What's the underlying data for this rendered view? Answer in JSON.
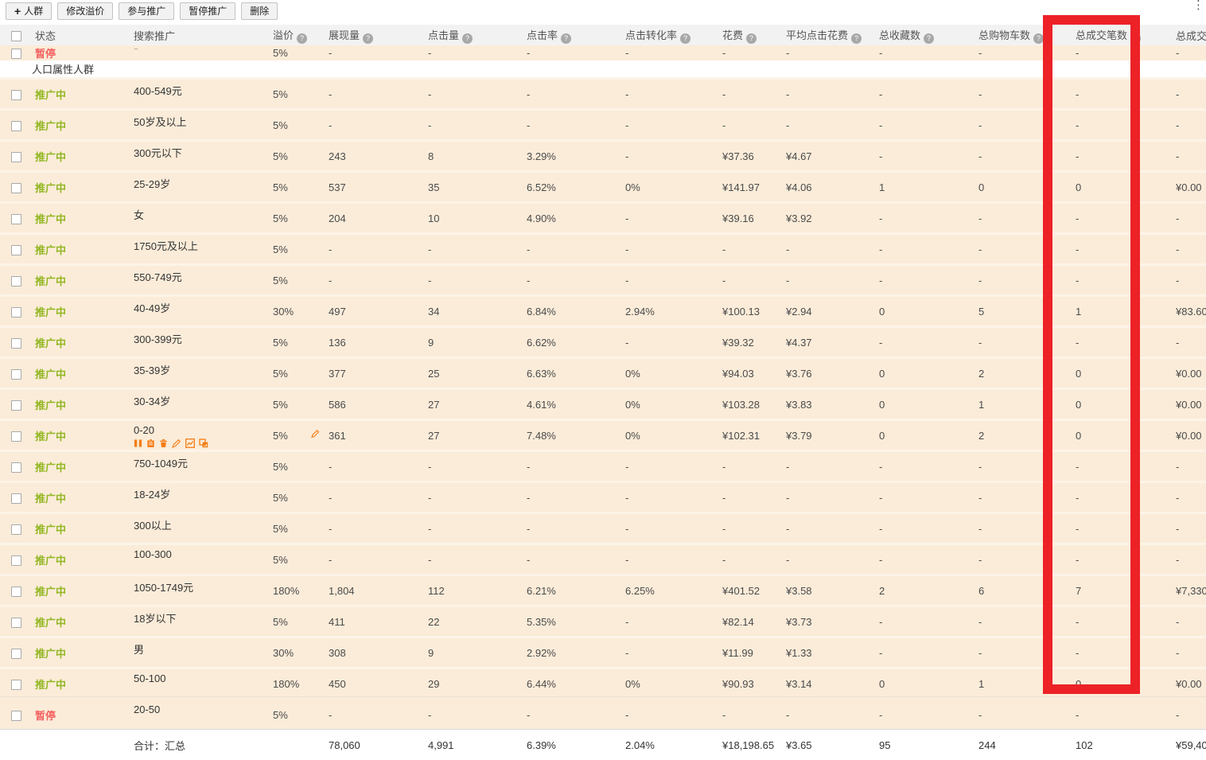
{
  "toolbar": {
    "buttons": [
      {
        "name": "add-audience-button",
        "label": "人群",
        "icon": "plus-icon"
      },
      {
        "name": "modify-premium-button",
        "label": "修改溢价"
      },
      {
        "name": "join-promotion-button",
        "label": "参与推广"
      },
      {
        "name": "pause-promotion-button",
        "label": "暂停推广"
      },
      {
        "name": "delete-button",
        "label": "删除"
      }
    ],
    "overflow_icon": "⋮"
  },
  "annotation": {
    "shape": "rectangle",
    "color": "#ec2227",
    "highlights_column": "总成交笔数"
  },
  "colors": {
    "row_background": "#fbecd9",
    "status_active": "#93b723",
    "status_paused": "#f4605f",
    "action_icon_orange": "#f57d14",
    "header_background": "#f2f2f2"
  },
  "table": {
    "columns": [
      {
        "key": "status",
        "label": "状态",
        "info": false,
        "name": "column-status"
      },
      {
        "key": "name",
        "label": "搜索推广",
        "info": false,
        "name": "column-search-promotion"
      },
      {
        "key": "premium",
        "label": "溢价",
        "info": true,
        "name": "column-premium"
      },
      {
        "key": "impressions",
        "label": "展现量",
        "info": true,
        "name": "column-impressions"
      },
      {
        "key": "clicks",
        "label": "点击量",
        "info": true,
        "name": "column-clicks"
      },
      {
        "key": "ctr",
        "label": "点击率",
        "info": true,
        "name": "column-ctr"
      },
      {
        "key": "cvr",
        "label": "点击转化率",
        "info": true,
        "name": "column-conversion-rate"
      },
      {
        "key": "cost",
        "label": "花费",
        "info": true,
        "name": "column-cost"
      },
      {
        "key": "avg_cost",
        "label": "平均点击花费",
        "info": true,
        "name": "column-avg-click-cost"
      },
      {
        "key": "favorites",
        "label": "总收藏数",
        "info": true,
        "name": "column-total-favorites"
      },
      {
        "key": "carts",
        "label": "总购物车数",
        "info": true,
        "name": "column-total-carts"
      },
      {
        "key": "deals",
        "label": "总成交笔数",
        "info": true,
        "name": "column-total-deals"
      },
      {
        "key": "amount",
        "label": "总成交金额",
        "info": false,
        "name": "column-total-amount"
      }
    ],
    "partial_row": {
      "status": "暂停",
      "state": "paused",
      "name_fragment": "~",
      "premium": "5%",
      "impressions": "-",
      "clicks": "-",
      "ctr": "-",
      "cvr": "-",
      "cost": "-",
      "avg_cost": "-",
      "favorites": "-",
      "carts": "-",
      "deals": "-",
      "amount": "-"
    },
    "section_label": "人口属性人群",
    "rows": [
      {
        "status": "推广中",
        "state": "active",
        "name": "400-549元",
        "premium": "5%",
        "impressions": "-",
        "clicks": "-",
        "ctr": "-",
        "cvr": "-",
        "cost": "-",
        "avg_cost": "-",
        "favorites": "-",
        "carts": "-",
        "deals": "-",
        "amount": "-"
      },
      {
        "status": "推广中",
        "state": "active",
        "name": "50岁及以上",
        "premium": "5%",
        "impressions": "-",
        "clicks": "-",
        "ctr": "-",
        "cvr": "-",
        "cost": "-",
        "avg_cost": "-",
        "favorites": "-",
        "carts": "-",
        "deals": "-",
        "amount": "-"
      },
      {
        "status": "推广中",
        "state": "active",
        "name": "300元以下",
        "premium": "5%",
        "impressions": "243",
        "clicks": "8",
        "ctr": "3.29%",
        "cvr": "-",
        "cost": "¥37.36",
        "avg_cost": "¥4.67",
        "favorites": "-",
        "carts": "-",
        "deals": "-",
        "amount": "-"
      },
      {
        "status": "推广中",
        "state": "active",
        "name": "25-29岁",
        "premium": "5%",
        "impressions": "537",
        "clicks": "35",
        "ctr": "6.52%",
        "cvr": "0%",
        "cost": "¥141.97",
        "avg_cost": "¥4.06",
        "favorites": "1",
        "carts": "0",
        "deals": "0",
        "amount": "¥0.00"
      },
      {
        "status": "推广中",
        "state": "active",
        "name": "女",
        "premium": "5%",
        "impressions": "204",
        "clicks": "10",
        "ctr": "4.90%",
        "cvr": "-",
        "cost": "¥39.16",
        "avg_cost": "¥3.92",
        "favorites": "-",
        "carts": "-",
        "deals": "-",
        "amount": "-"
      },
      {
        "status": "推广中",
        "state": "active",
        "name": "1750元及以上",
        "premium": "5%",
        "impressions": "-",
        "clicks": "-",
        "ctr": "-",
        "cvr": "-",
        "cost": "-",
        "avg_cost": "-",
        "favorites": "-",
        "carts": "-",
        "deals": "-",
        "amount": "-"
      },
      {
        "status": "推广中",
        "state": "active",
        "name": "550-749元",
        "premium": "5%",
        "impressions": "-",
        "clicks": "-",
        "ctr": "-",
        "cvr": "-",
        "cost": "-",
        "avg_cost": "-",
        "favorites": "-",
        "carts": "-",
        "deals": "-",
        "amount": "-"
      },
      {
        "status": "推广中",
        "state": "active",
        "name": "40-49岁",
        "premium": "30%",
        "impressions": "497",
        "clicks": "34",
        "ctr": "6.84%",
        "cvr": "2.94%",
        "cost": "¥100.13",
        "avg_cost": "¥2.94",
        "favorites": "0",
        "carts": "5",
        "deals": "1",
        "amount": "¥83.60"
      },
      {
        "status": "推广中",
        "state": "active",
        "name": "300-399元",
        "premium": "5%",
        "impressions": "136",
        "clicks": "9",
        "ctr": "6.62%",
        "cvr": "-",
        "cost": "¥39.32",
        "avg_cost": "¥4.37",
        "favorites": "-",
        "carts": "-",
        "deals": "-",
        "amount": "-"
      },
      {
        "status": "推广中",
        "state": "active",
        "name": "35-39岁",
        "premium": "5%",
        "impressions": "377",
        "clicks": "25",
        "ctr": "6.63%",
        "cvr": "0%",
        "cost": "¥94.03",
        "avg_cost": "¥3.76",
        "favorites": "0",
        "carts": "2",
        "deals": "0",
        "amount": "¥0.00"
      },
      {
        "status": "推广中",
        "state": "active",
        "name": "30-34岁",
        "premium": "5%",
        "impressions": "586",
        "clicks": "27",
        "ctr": "4.61%",
        "cvr": "0%",
        "cost": "¥103.28",
        "avg_cost": "¥3.83",
        "favorites": "0",
        "carts": "1",
        "deals": "0",
        "amount": "¥0.00"
      },
      {
        "status": "推广中",
        "state": "active",
        "name": "0-20",
        "premium": "5%",
        "impressions": "361",
        "clicks": "27",
        "ctr": "7.48%",
        "cvr": "0%",
        "cost": "¥102.31",
        "avg_cost": "¥3.79",
        "favorites": "0",
        "carts": "2",
        "deals": "0",
        "amount": "¥0.00",
        "action_icons": [
          "pause-icon",
          "clipboard-icon",
          "trash-icon",
          "edit-icon",
          "chart-icon",
          "export-icon"
        ],
        "premium_edit_icon": "pencil-icon"
      },
      {
        "status": "推广中",
        "state": "active",
        "name": "750-1049元",
        "premium": "5%",
        "impressions": "-",
        "clicks": "-",
        "ctr": "-",
        "cvr": "-",
        "cost": "-",
        "avg_cost": "-",
        "favorites": "-",
        "carts": "-",
        "deals": "-",
        "amount": "-"
      },
      {
        "status": "推广中",
        "state": "active",
        "name": "18-24岁",
        "premium": "5%",
        "impressions": "-",
        "clicks": "-",
        "ctr": "-",
        "cvr": "-",
        "cost": "-",
        "avg_cost": "-",
        "favorites": "-",
        "carts": "-",
        "deals": "-",
        "amount": "-"
      },
      {
        "status": "推广中",
        "state": "active",
        "name": "300以上",
        "premium": "5%",
        "impressions": "-",
        "clicks": "-",
        "ctr": "-",
        "cvr": "-",
        "cost": "-",
        "avg_cost": "-",
        "favorites": "-",
        "carts": "-",
        "deals": "-",
        "amount": "-"
      },
      {
        "status": "推广中",
        "state": "active",
        "name": "100-300",
        "premium": "5%",
        "impressions": "-",
        "clicks": "-",
        "ctr": "-",
        "cvr": "-",
        "cost": "-",
        "avg_cost": "-",
        "favorites": "-",
        "carts": "-",
        "deals": "-",
        "amount": "-"
      },
      {
        "status": "推广中",
        "state": "active",
        "name": "1050-1749元",
        "premium": "180%",
        "impressions": "1,804",
        "clicks": "112",
        "ctr": "6.21%",
        "cvr": "6.25%",
        "cost": "¥401.52",
        "avg_cost": "¥3.58",
        "favorites": "2",
        "carts": "6",
        "deals": "7",
        "amount": "¥7,330"
      },
      {
        "status": "推广中",
        "state": "active",
        "name": "18岁以下",
        "premium": "5%",
        "impressions": "411",
        "clicks": "22",
        "ctr": "5.35%",
        "cvr": "-",
        "cost": "¥82.14",
        "avg_cost": "¥3.73",
        "favorites": "-",
        "carts": "-",
        "deals": "-",
        "amount": "-"
      },
      {
        "status": "推广中",
        "state": "active",
        "name": "男",
        "premium": "30%",
        "impressions": "308",
        "clicks": "9",
        "ctr": "2.92%",
        "cvr": "-",
        "cost": "¥11.99",
        "avg_cost": "¥1.33",
        "favorites": "-",
        "carts": "-",
        "deals": "-",
        "amount": "-"
      },
      {
        "status": "推广中",
        "state": "active",
        "name": "50-100",
        "premium": "180%",
        "impressions": "450",
        "clicks": "29",
        "ctr": "6.44%",
        "cvr": "0%",
        "cost": "¥90.93",
        "avg_cost": "¥3.14",
        "favorites": "0",
        "carts": "1",
        "deals": "0",
        "amount": "¥0.00"
      },
      {
        "status": "暂停",
        "state": "paused",
        "name": "20-50",
        "premium": "5%",
        "impressions": "-",
        "clicks": "-",
        "ctr": "-",
        "cvr": "-",
        "cost": "-",
        "avg_cost": "-",
        "favorites": "-",
        "carts": "-",
        "deals": "-",
        "amount": "-"
      }
    ],
    "totals": {
      "label": "合计：汇总",
      "premium": "",
      "impressions": "78,060",
      "clicks": "4,991",
      "ctr": "6.39%",
      "cvr": "2.04%",
      "cost": "¥18,198.65",
      "avg_cost": "¥3.65",
      "favorites": "95",
      "carts": "244",
      "deals": "102",
      "amount": "¥59,40"
    }
  }
}
